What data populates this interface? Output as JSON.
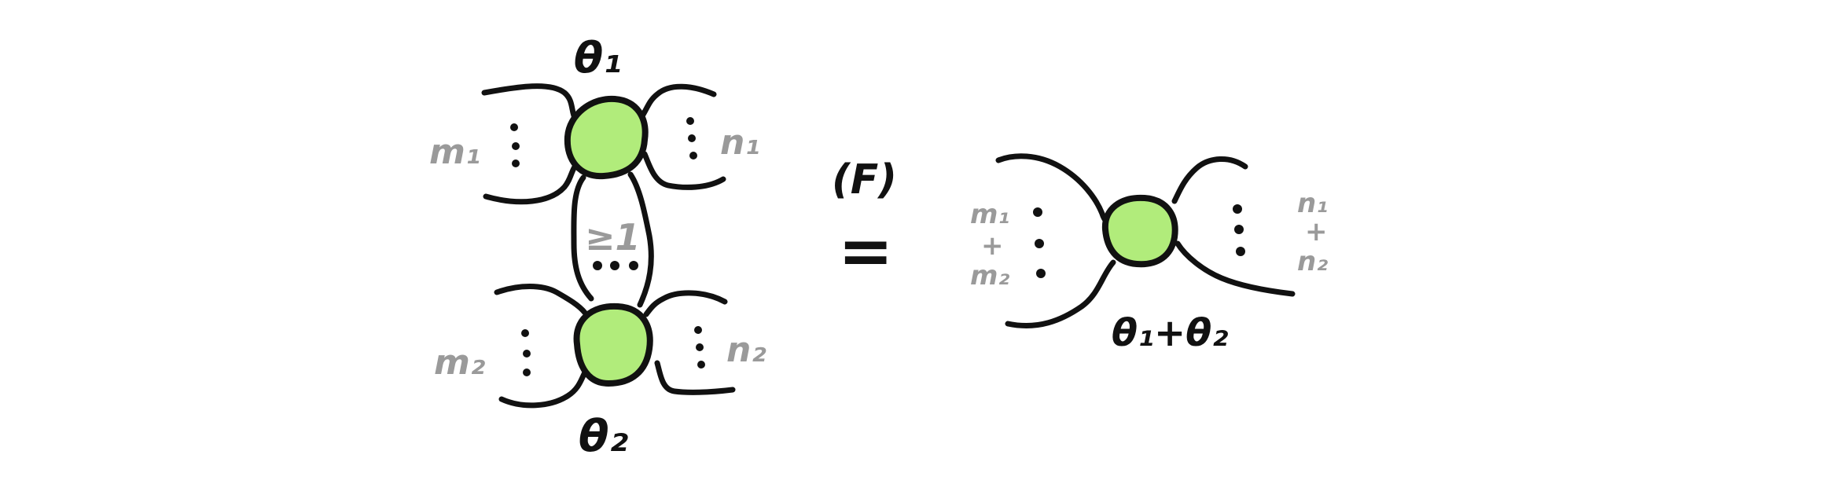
{
  "colors": {
    "spider_fill": "#b1ec7b",
    "stroke": "#111111",
    "grey_label": "#9a9a9a"
  },
  "lhs": {
    "top_spider": {
      "phase": "θ₁",
      "left_legs": "m₁",
      "right_legs": "n₁"
    },
    "bottom_spider": {
      "phase": "θ₂",
      "left_legs": "m₂",
      "right_legs": "n₂"
    },
    "connecting_wires": "≥1"
  },
  "rule": {
    "label": "(F)",
    "symbol": "="
  },
  "rhs": {
    "spider": {
      "phase": "θ₁+θ₂",
      "left_legs_top": "m₁",
      "left_plus": "+",
      "left_legs_bottom": "m₂",
      "right_legs_top": "n₁",
      "right_plus": "+",
      "right_legs_bottom": "n₂"
    }
  }
}
